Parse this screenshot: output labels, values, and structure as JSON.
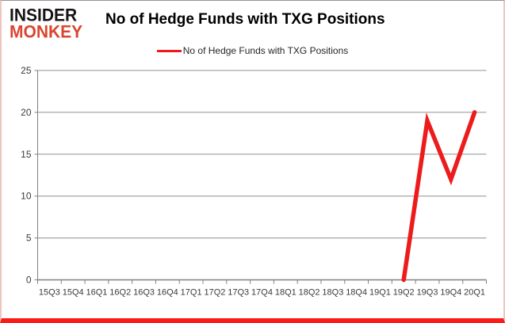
{
  "brand": {
    "line1": "INSIDER",
    "line2": "MONKEY",
    "line1_color": "#161314",
    "line2_color": "#d9452f"
  },
  "header": {
    "title": "No of Hedge Funds with TXG Positions"
  },
  "legend": {
    "label": "No of Hedge Funds with TXG Positions",
    "line_color": "#ed1c1c"
  },
  "chart_data": {
    "type": "line",
    "title": "No of Hedge Funds with TXG Positions",
    "categories": [
      "15Q3",
      "15Q4",
      "16Q1",
      "16Q2",
      "16Q3",
      "16Q4",
      "17Q1",
      "17Q2",
      "17Q3",
      "17Q4",
      "18Q1",
      "18Q2",
      "18Q3",
      "18Q4",
      "19Q1",
      "19Q2",
      "19Q3",
      "19Q4",
      "20Q1"
    ],
    "series": [
      {
        "name": "No of Hedge Funds with TXG Positions",
        "color": "#ed1c1c",
        "values": [
          null,
          null,
          null,
          null,
          null,
          null,
          null,
          null,
          null,
          null,
          null,
          null,
          null,
          null,
          null,
          0,
          19,
          12,
          20
        ]
      }
    ],
    "xlabel": "",
    "ylabel": "",
    "ylim": [
      0,
      25
    ],
    "yticks": [
      0,
      5,
      10,
      15,
      20,
      25
    ],
    "grid": true,
    "gridline_color": "#919191",
    "axis_color": "#808080",
    "tick_label_color": "#3a3a3a",
    "legend_position": "top"
  }
}
